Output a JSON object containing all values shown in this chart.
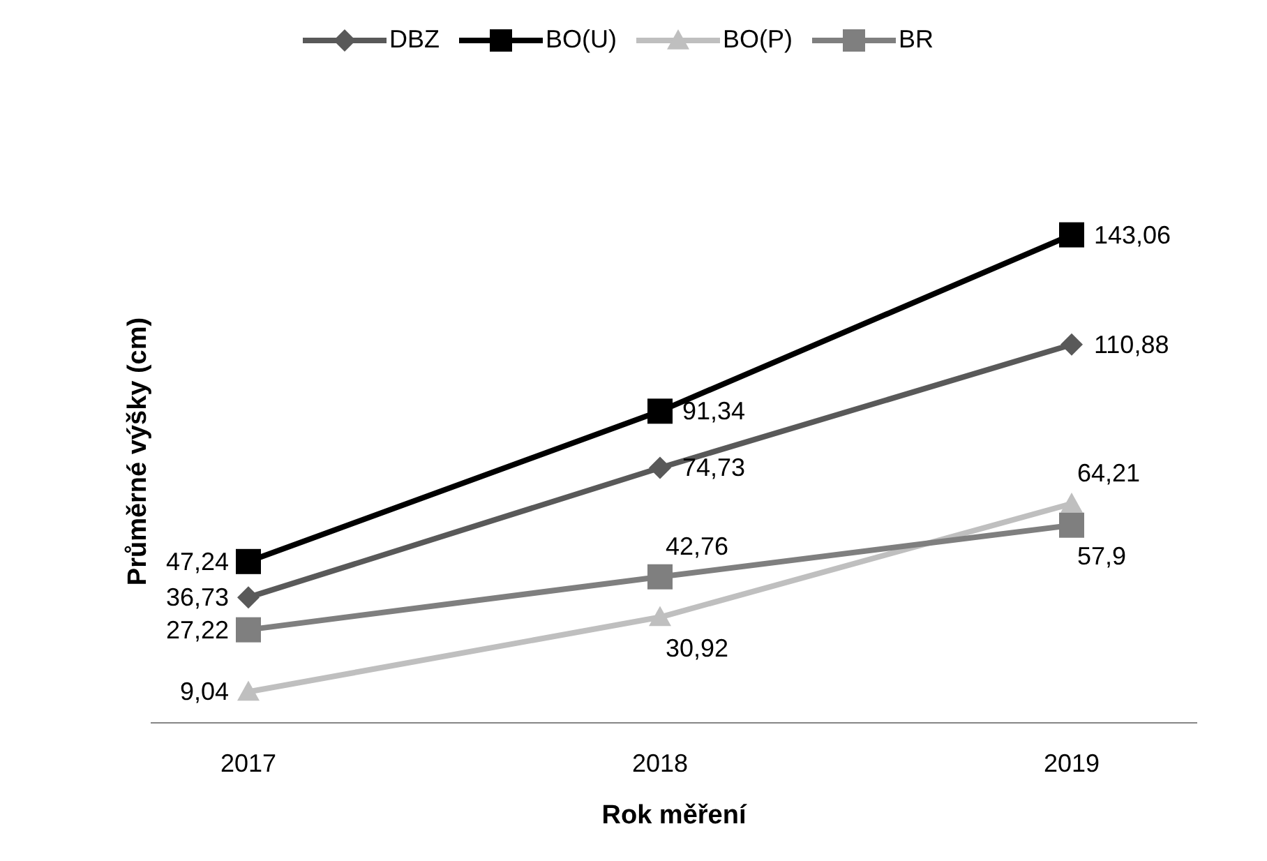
{
  "chart_data": {
    "type": "line",
    "xlabel": "Rok měření",
    "ylabel": "Průměrné výšky (cm)",
    "categories": [
      "2017",
      "2018",
      "2019"
    ],
    "tick_labels": "x",
    "legend": "top",
    "data_labels": true,
    "series": [
      {
        "name": "DBZ",
        "color": "#595959",
        "marker": "diamond",
        "values": [
          36.73,
          74.73,
          110.88
        ],
        "value_labels": [
          "36,73",
          "74,73",
          "110,88"
        ]
      },
      {
        "name": "BO(U)",
        "color": "#000000",
        "marker": "square",
        "values": [
          47.24,
          91.34,
          143.06
        ],
        "value_labels": [
          "47,24",
          "91,34",
          "143,06"
        ]
      },
      {
        "name": "BO(P)",
        "color": "#bfbfbf",
        "marker": "triangle",
        "values": [
          9.04,
          30.92,
          64.21
        ],
        "value_labels": [
          "9,04",
          "30,92",
          "64,21"
        ]
      },
      {
        "name": "BR",
        "color": "#7f7f7f",
        "marker": "square",
        "values": [
          27.22,
          42.76,
          57.9
        ],
        "value_labels": [
          "27,22",
          "42,76",
          "57,9"
        ]
      }
    ]
  }
}
